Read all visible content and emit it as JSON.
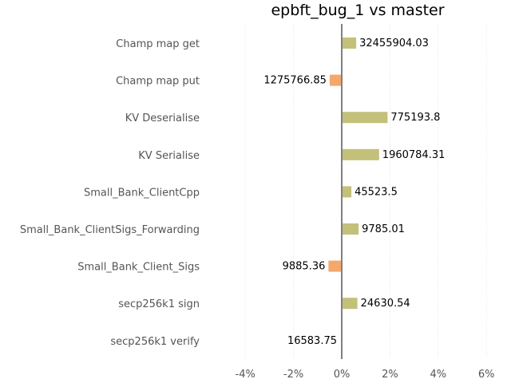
{
  "chart_data": {
    "type": "bar",
    "orientation": "horizontal",
    "title": "epbft_bug_1 vs master",
    "xlabel": "",
    "ylabel": "",
    "categories": [
      "Champ map get",
      "Champ map put",
      "KV Deserialise",
      "KV Serialise",
      "Small_Bank_ClientCpp",
      "Small_Bank_ClientSigs_Forwarding",
      "Small_Bank_Client_Sigs",
      "secp256k1 sign",
      "secp256k1 verify"
    ],
    "values": [
      0.6,
      -0.5,
      1.9,
      1.55,
      0.4,
      0.7,
      -0.55,
      0.65,
      0.0
    ],
    "data_labels": [
      "32455904.03",
      "1275766.85",
      "775193.8",
      "1960784.31",
      "45523.5",
      "9785.01",
      "9885.36",
      "24630.54",
      "16583.75"
    ],
    "xlim": [
      -4.7,
      6.3
    ],
    "xticks": [
      -4,
      -2,
      0,
      2,
      4,
      6
    ],
    "xtick_labels": [
      "-4%",
      "-2%",
      "0%",
      "2%",
      "4%",
      "6%"
    ],
    "grid": "vertical-dotted",
    "colors": {
      "positive": "#c3c07a",
      "negative": "#f4a86b",
      "zero_line": "#808080",
      "grid": "#e6e6e6"
    }
  }
}
